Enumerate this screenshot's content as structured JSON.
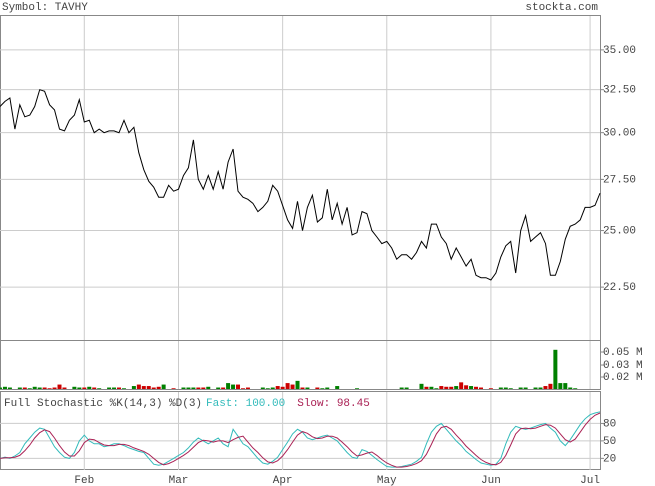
{
  "header": {
    "symbol": "Symbol: TAVHY",
    "site": "stockta.com"
  },
  "chart_data": [
    {
      "type": "line",
      "log_scale": true,
      "grid": true,
      "color": "#000000",
      "categories": [
        null,
        null,
        null,
        null,
        null,
        null,
        null,
        null,
        null,
        null,
        null,
        null,
        null,
        null,
        null,
        null,
        null,
        "Feb",
        null,
        null,
        null,
        null,
        null,
        null,
        null,
        null,
        null,
        null,
        null,
        null,
        null,
        null,
        null,
        null,
        null,
        null,
        "Mar",
        null,
        null,
        null,
        null,
        null,
        null,
        null,
        null,
        null,
        null,
        null,
        null,
        null,
        null,
        null,
        null,
        null,
        null,
        null,
        null,
        "Apr",
        null,
        null,
        null,
        null,
        null,
        null,
        null,
        null,
        null,
        null,
        null,
        null,
        null,
        null,
        null,
        null,
        null,
        null,
        null,
        null,
        "May",
        null,
        null,
        null,
        null,
        null,
        null,
        null,
        null,
        null,
        null,
        null,
        null,
        null,
        null,
        null,
        null,
        null,
        null,
        null,
        null,
        "Jun",
        null,
        null,
        null,
        null,
        null,
        null,
        null,
        null,
        null,
        null,
        null,
        null,
        null,
        null,
        null,
        null,
        null,
        null,
        null,
        "Jul",
        null,
        null
      ],
      "values": [
        31.5,
        31.8,
        32.0,
        30.2,
        31.6,
        30.9,
        31.0,
        31.5,
        32.5,
        32.4,
        31.6,
        31.3,
        30.2,
        30.1,
        30.7,
        31.0,
        31.9,
        30.6,
        30.7,
        30.0,
        30.2,
        30.0,
        30.1,
        30.1,
        30.0,
        30.7,
        30.0,
        30.3,
        28.9,
        28.0,
        27.4,
        27.1,
        26.6,
        26.6,
        27.2,
        26.9,
        27.0,
        27.7,
        28.1,
        29.6,
        27.5,
        27.0,
        27.7,
        27.0,
        27.9,
        27.0,
        28.4,
        29.1,
        26.9,
        26.6,
        26.5,
        26.3,
        25.9,
        26.1,
        26.4,
        27.2,
        26.9,
        26.2,
        25.5,
        25.1,
        26.4,
        25.0,
        26.1,
        26.7,
        25.4,
        25.6,
        27.0,
        25.5,
        26.3,
        25.3,
        26.1,
        24.8,
        24.9,
        25.9,
        25.8,
        25.0,
        24.7,
        24.4,
        24.5,
        24.2,
        23.7,
        23.9,
        23.9,
        23.7,
        24.0,
        24.5,
        24.2,
        25.3,
        25.3,
        24.7,
        24.4,
        23.7,
        24.2,
        23.8,
        23.4,
        23.7,
        23.0,
        22.9,
        22.9,
        22.8,
        23.1,
        23.8,
        24.3,
        24.5,
        23.1,
        25.0,
        25.7,
        24.5,
        24.7,
        24.9,
        24.4,
        23.0,
        23.0,
        23.6,
        24.6,
        25.2,
        25.3,
        25.5,
        26.1,
        26.1,
        26.2,
        26.8
      ],
      "ylim": [
        20.39,
        37.28
      ],
      "yticks": [
        {
          "value": 22.5,
          "label": "22.50"
        },
        {
          "value": 25,
          "label": "25.00"
        },
        {
          "value": 27.5,
          "label": "27.50"
        },
        {
          "value": 30,
          "label": "30.00"
        },
        {
          "value": 32.5,
          "label": "32.50"
        },
        {
          "value": 35,
          "label": "35.00"
        }
      ]
    },
    {
      "type": "bar",
      "up_color": "#008000",
      "down_color": "#cc0000",
      "values": [
        0.002,
        0.003,
        0.002,
        0,
        0.002,
        0.002,
        0.001,
        0.003,
        0.002,
        0.002,
        0.001,
        0.002,
        0.006,
        0.002,
        0,
        0.003,
        0.002,
        0.002,
        0.003,
        0.002,
        0.001,
        0,
        0.002,
        0.002,
        0.002,
        0.001,
        0,
        0.004,
        0.006,
        0.004,
        0.004,
        0.002,
        0.003,
        0.006,
        0,
        0.001,
        0,
        0.002,
        0.002,
        0.002,
        0.002,
        0.002,
        0.003,
        0,
        0.002,
        0.002,
        0.008,
        0.006,
        0.006,
        0.001,
        0.002,
        0,
        0,
        0.002,
        0.001,
        0.002,
        0.004,
        0.003,
        0.008,
        0.006,
        0.011,
        0.002,
        0.002,
        0,
        0.002,
        0.001,
        0.002,
        0,
        0.004,
        0,
        0,
        0,
        0.001,
        0,
        0,
        0,
        0,
        0,
        0,
        0,
        0,
        0.002,
        0.002,
        0,
        0,
        0.007,
        0.003,
        0.003,
        0.001,
        0.004,
        0.003,
        0.003,
        0.004,
        0.009,
        0.005,
        0.004,
        0.003,
        0.002,
        0,
        0.001,
        0,
        0.002,
        0.002,
        0.001,
        0,
        0.002,
        0.002,
        0,
        0.002,
        0.002,
        0.004,
        0.007,
        0.053,
        0.008,
        0.008,
        0.002,
        0.001,
        0,
        0,
        0,
        0,
        0
      ],
      "ylim": [
        0,
        0.0649
      ],
      "yticks": [
        {
          "value": 0.0162,
          "label": "0.02 M"
        },
        {
          "value": 0.0324,
          "label": "0.03 M"
        },
        {
          "value": 0.05,
          "label": "0.05 M"
        }
      ]
    },
    {
      "type": "line",
      "title": "Full Stochastic %K(14,3) %D(3)",
      "grid": true,
      "series": [
        {
          "name": "Fast: 100.00",
          "color": "#33bbbb",
          "values": [
            20,
            22,
            20,
            24,
            30,
            45,
            55,
            65,
            72,
            70,
            55,
            40,
            30,
            22,
            20,
            30,
            50,
            60,
            50,
            45,
            45,
            40,
            42,
            45,
            45,
            42,
            38,
            35,
            32,
            30,
            20,
            10,
            8,
            10,
            15,
            20,
            25,
            30,
            38,
            48,
            55,
            50,
            45,
            50,
            55,
            45,
            40,
            70,
            58,
            45,
            40,
            30,
            20,
            12,
            10,
            15,
            22,
            35,
            48,
            62,
            70,
            65,
            55,
            52,
            55,
            58,
            60,
            55,
            50,
            40,
            30,
            22,
            20,
            35,
            32,
            25,
            18,
            12,
            6,
            5,
            5,
            6,
            8,
            10,
            15,
            22,
            45,
            65,
            75,
            80,
            70,
            60,
            50,
            42,
            32,
            25,
            18,
            12,
            10,
            8,
            10,
            20,
            45,
            65,
            75,
            72,
            70,
            72,
            75,
            78,
            80,
            72,
            65,
            50,
            42,
            52,
            65,
            78,
            88,
            95,
            98,
            100
          ]
        },
        {
          "name": "Slow: 98.45",
          "color": "#aa2255",
          "values": [
            20,
            21,
            21,
            22,
            25,
            33,
            43,
            55,
            64,
            69,
            66,
            55,
            42,
            31,
            24,
            24,
            33,
            47,
            53,
            52,
            47,
            43,
            42,
            42,
            44,
            44,
            42,
            38,
            35,
            32,
            27,
            20,
            13,
            9,
            11,
            15,
            20,
            25,
            31,
            39,
            47,
            51,
            50,
            48,
            50,
            50,
            47,
            52,
            56,
            58,
            48,
            38,
            30,
            21,
            14,
            12,
            16,
            24,
            35,
            48,
            60,
            66,
            63,
            57,
            54,
            55,
            58,
            58,
            55,
            48,
            40,
            31,
            24,
            26,
            29,
            31,
            25,
            18,
            12,
            8,
            5,
            5,
            6,
            8,
            11,
            16,
            27,
            44,
            62,
            73,
            75,
            70,
            60,
            51,
            41,
            33,
            25,
            18,
            13,
            10,
            9,
            13,
            25,
            43,
            62,
            71,
            72,
            71,
            72,
            75,
            78,
            77,
            72,
            62,
            52,
            48,
            53,
            65,
            77,
            87,
            94,
            98
          ]
        }
      ],
      "ylim": [
        0,
        134
      ],
      "yticks": [
        20,
        50,
        80
      ]
    }
  ]
}
